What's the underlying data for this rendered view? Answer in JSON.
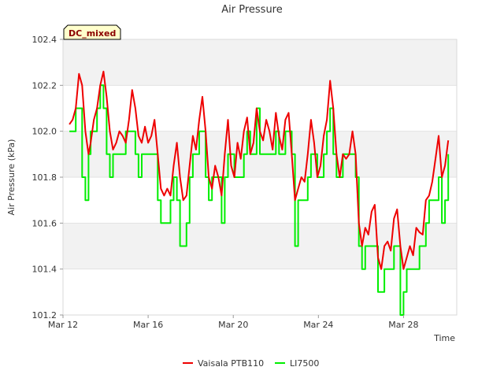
{
  "chart_data": {
    "type": "line",
    "title": "Air Pressure",
    "xlabel": "Time",
    "ylabel": "Air Pressure (kPa)",
    "badge": "DC_mixed",
    "ylim": [
      101.2,
      102.4
    ],
    "xlim_days": [
      0,
      18.5
    ],
    "yticks": [
      101.2,
      101.4,
      101.6,
      101.8,
      102.0,
      102.2,
      102.4
    ],
    "ytick_labels": [
      "101.2",
      "101.4",
      "101.6",
      "101.8",
      "102.0",
      "102.2",
      "102.4"
    ],
    "xticks": [
      0,
      4,
      8,
      12,
      16
    ],
    "xtick_labels": [
      "Mar 12",
      "Mar 16",
      "Mar 20",
      "Mar 24",
      "Mar 28"
    ],
    "legend": {
      "position": "bottom-center"
    },
    "series": [
      {
        "name": "Vaisala PTB110",
        "color": "#ee0000",
        "x": [
          0.3,
          0.45,
          0.6,
          0.75,
          0.9,
          1.05,
          1.2,
          1.3,
          1.45,
          1.6,
          1.75,
          1.9,
          2.05,
          2.2,
          2.35,
          2.5,
          2.65,
          2.8,
          2.95,
          3.1,
          3.25,
          3.4,
          3.55,
          3.7,
          3.85,
          4.0,
          4.15,
          4.3,
          4.45,
          4.6,
          4.75,
          4.9,
          5.05,
          5.2,
          5.35,
          5.5,
          5.65,
          5.8,
          5.95,
          6.1,
          6.25,
          6.4,
          6.55,
          6.7,
          6.85,
          7.0,
          7.15,
          7.3,
          7.45,
          7.6,
          7.75,
          7.9,
          8.05,
          8.2,
          8.35,
          8.5,
          8.65,
          8.8,
          8.95,
          9.1,
          9.25,
          9.4,
          9.55,
          9.7,
          9.85,
          10.0,
          10.15,
          10.3,
          10.45,
          10.6,
          10.75,
          10.9,
          11.05,
          11.2,
          11.35,
          11.5,
          11.65,
          11.8,
          11.95,
          12.1,
          12.25,
          12.4,
          12.55,
          12.7,
          12.85,
          13.0,
          13.15,
          13.3,
          13.45,
          13.6,
          13.75,
          13.9,
          14.05,
          14.2,
          14.35,
          14.5,
          14.65,
          14.8,
          14.95,
          15.1,
          15.25,
          15.4,
          15.55,
          15.7,
          15.85,
          16.0,
          16.15,
          16.3,
          16.45,
          16.6,
          16.75,
          16.9,
          17.05,
          17.2,
          17.35,
          17.5,
          17.65,
          17.8,
          17.95,
          18.1
        ],
        "values": [
          102.03,
          102.05,
          102.1,
          102.25,
          102.2,
          102.0,
          101.9,
          101.95,
          102.05,
          102.1,
          102.2,
          102.26,
          102.15,
          102.0,
          101.92,
          101.95,
          102.0,
          101.98,
          101.95,
          102.05,
          102.18,
          102.1,
          101.98,
          101.95,
          102.02,
          101.95,
          101.98,
          102.05,
          101.9,
          101.75,
          101.72,
          101.75,
          101.72,
          101.85,
          101.95,
          101.8,
          101.7,
          101.72,
          101.85,
          101.98,
          101.92,
          102.05,
          102.15,
          102.0,
          101.8,
          101.75,
          101.85,
          101.8,
          101.72,
          101.9,
          102.05,
          101.85,
          101.8,
          101.95,
          101.88,
          102.0,
          102.06,
          101.9,
          101.95,
          102.1,
          102.0,
          101.96,
          102.05,
          102.0,
          101.92,
          102.08,
          101.98,
          101.92,
          102.05,
          102.08,
          101.9,
          101.7,
          101.75,
          101.8,
          101.78,
          101.9,
          102.05,
          101.95,
          101.8,
          101.85,
          101.98,
          102.05,
          102.22,
          102.1,
          101.9,
          101.8,
          101.9,
          101.88,
          101.9,
          102.0,
          101.9,
          101.6,
          101.5,
          101.58,
          101.55,
          101.65,
          101.68,
          101.45,
          101.4,
          101.5,
          101.52,
          101.48,
          101.62,
          101.66,
          101.5,
          101.4,
          101.45,
          101.5,
          101.46,
          101.58,
          101.56,
          101.55,
          101.7,
          101.72,
          101.78,
          101.88,
          101.98,
          101.8,
          101.85,
          101.96
        ]
      },
      {
        "name": "LI7500",
        "color": "#00ee00",
        "x": [
          0.3,
          0.45,
          0.6,
          0.75,
          0.9,
          1.05,
          1.2,
          1.3,
          1.45,
          1.6,
          1.75,
          1.9,
          2.05,
          2.2,
          2.35,
          2.5,
          2.65,
          2.8,
          2.95,
          3.1,
          3.25,
          3.4,
          3.55,
          3.7,
          3.85,
          4.0,
          4.15,
          4.3,
          4.45,
          4.6,
          4.75,
          4.9,
          5.05,
          5.2,
          5.35,
          5.5,
          5.65,
          5.8,
          5.95,
          6.1,
          6.25,
          6.4,
          6.55,
          6.7,
          6.85,
          7.0,
          7.15,
          7.3,
          7.45,
          7.6,
          7.75,
          7.9,
          8.05,
          8.2,
          8.35,
          8.5,
          8.65,
          8.8,
          8.95,
          9.1,
          9.25,
          9.4,
          9.55,
          9.7,
          9.85,
          10.0,
          10.15,
          10.3,
          10.45,
          10.6,
          10.75,
          10.9,
          11.05,
          11.2,
          11.35,
          11.5,
          11.65,
          11.8,
          11.95,
          12.1,
          12.25,
          12.4,
          12.55,
          12.7,
          12.85,
          13.0,
          13.15,
          13.3,
          13.45,
          13.6,
          13.75,
          13.9,
          14.05,
          14.2,
          14.35,
          14.5,
          14.65,
          14.8,
          14.95,
          15.1,
          15.25,
          15.4,
          15.55,
          15.7,
          15.85,
          16.0,
          16.15,
          16.3,
          16.45,
          16.6,
          16.75,
          16.9,
          17.05,
          17.2,
          17.35,
          17.5,
          17.65,
          17.8,
          17.95,
          18.1
        ],
        "values": [
          102.0,
          102.0,
          102.1,
          102.1,
          101.8,
          101.7,
          101.9,
          102.0,
          102.0,
          102.1,
          102.2,
          102.1,
          101.9,
          101.8,
          101.9,
          101.9,
          101.9,
          101.9,
          102.0,
          102.0,
          102.0,
          101.9,
          101.8,
          101.9,
          101.9,
          101.9,
          101.9,
          101.9,
          101.7,
          101.6,
          101.6,
          101.6,
          101.7,
          101.8,
          101.7,
          101.5,
          101.5,
          101.6,
          101.8,
          101.9,
          101.9,
          102.0,
          102.0,
          101.8,
          101.7,
          101.8,
          101.8,
          101.8,
          101.6,
          101.8,
          101.9,
          101.9,
          101.8,
          101.8,
          101.8,
          101.9,
          102.0,
          101.9,
          101.9,
          102.1,
          101.9,
          101.9,
          101.9,
          101.9,
          101.9,
          102.0,
          101.9,
          101.9,
          102.0,
          102.0,
          101.9,
          101.5,
          101.7,
          101.7,
          101.7,
          101.8,
          101.9,
          101.9,
          101.8,
          101.8,
          101.9,
          102.0,
          102.1,
          101.9,
          101.8,
          101.8,
          101.9,
          101.9,
          101.9,
          101.9,
          101.8,
          101.5,
          101.4,
          101.5,
          101.5,
          101.5,
          101.5,
          101.3,
          101.3,
          101.4,
          101.4,
          101.4,
          101.5,
          101.5,
          101.2,
          101.3,
          101.4,
          101.4,
          101.4,
          101.4,
          101.5,
          101.5,
          101.6,
          101.7,
          101.7,
          101.7,
          101.8,
          101.6,
          101.7,
          101.9
        ]
      }
    ]
  }
}
